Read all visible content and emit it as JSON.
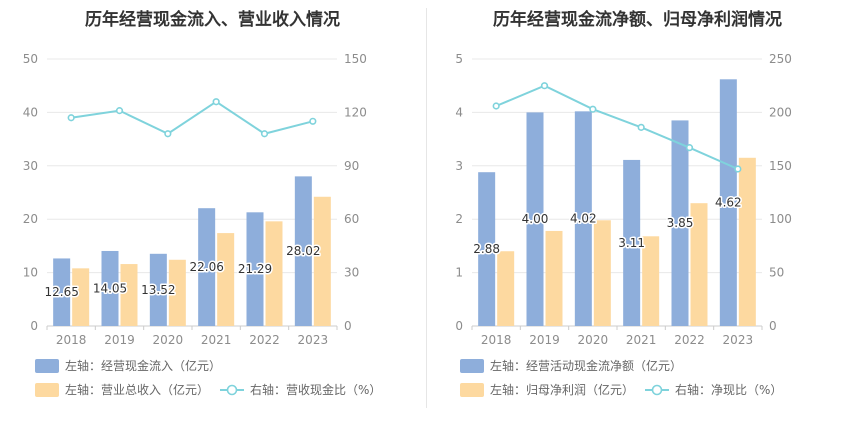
{
  "titles": {
    "left": "历年经营现金流入、营业收入情况",
    "right": "历年经营现金流净额、归母净利润情况"
  },
  "colors": {
    "bar_primary": "#8eaedb",
    "bar_secondary": "#fdd9a0",
    "line": "#7fd3dc",
    "grid": "#e8e8e8",
    "axis_text": "#8c8c8c"
  },
  "chart_data": [
    {
      "type": "bar",
      "title": "历年经营现金流入、营业收入情况",
      "categories": [
        "2018",
        "2019",
        "2020",
        "2021",
        "2022",
        "2023"
      ],
      "left_axis": {
        "ylim": [
          0,
          50
        ],
        "ticks": [
          0,
          10,
          20,
          30,
          40,
          50
        ]
      },
      "right_axis": {
        "ylim": [
          0,
          150
        ],
        "ticks": [
          0,
          30,
          60,
          90,
          120,
          150
        ]
      },
      "series": [
        {
          "name": "左轴：经营现金流入（亿元）",
          "axis": "left",
          "kind": "bar",
          "color": "#8eaedb",
          "labels_shown": true,
          "values": [
            12.65,
            14.05,
            13.52,
            22.06,
            21.29,
            28.02
          ]
        },
        {
          "name": "左轴：营业总收入（亿元）",
          "axis": "left",
          "kind": "bar",
          "color": "#fdd9a0",
          "labels_shown": false,
          "values": [
            10.8,
            11.6,
            12.4,
            17.4,
            19.6,
            24.2
          ]
        },
        {
          "name": "右轴：营收现金比（%）",
          "axis": "right",
          "kind": "line",
          "color": "#7fd3dc",
          "labels_shown": false,
          "values": [
            117,
            121,
            108,
            126,
            108,
            115
          ]
        }
      ],
      "legend": {
        "placement": "bottom"
      }
    },
    {
      "type": "bar",
      "title": "历年经营现金流净额、归母净利润情况",
      "categories": [
        "2018",
        "2019",
        "2020",
        "2021",
        "2022",
        "2023"
      ],
      "left_axis": {
        "ylim": [
          0,
          5
        ],
        "ticks": [
          0,
          1,
          2,
          3,
          4,
          5
        ]
      },
      "right_axis": {
        "ylim": [
          0,
          250
        ],
        "ticks": [
          0,
          50,
          100,
          150,
          200,
          250
        ]
      },
      "series": [
        {
          "name": "左轴：经营活动现金流净额（亿元）",
          "axis": "left",
          "kind": "bar",
          "color": "#8eaedb",
          "labels_shown": true,
          "values": [
            2.88,
            4.0,
            4.02,
            3.11,
            3.85,
            4.62
          ]
        },
        {
          "name": "左轴：归母净利润（亿元）",
          "axis": "left",
          "kind": "bar",
          "color": "#fdd9a0",
          "labels_shown": false,
          "values": [
            1.4,
            1.78,
            1.98,
            1.68,
            2.3,
            3.15
          ]
        },
        {
          "name": "右轴：净现比（%）",
          "axis": "right",
          "kind": "line",
          "color": "#7fd3dc",
          "labels_shown": false,
          "values": [
            206,
            225,
            203,
            186,
            167,
            147
          ]
        }
      ],
      "legend": {
        "placement": "bottom"
      }
    }
  ]
}
